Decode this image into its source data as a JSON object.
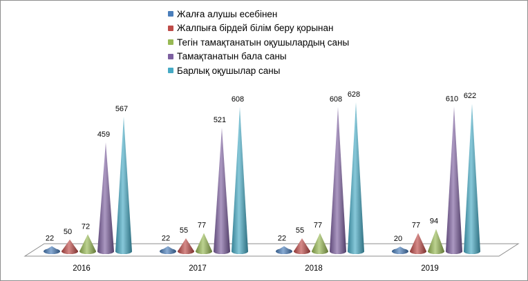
{
  "chart_data": {
    "type": "bar",
    "style": "3d-cone",
    "categories": [
      "2016",
      "2017",
      "2018",
      "2019"
    ],
    "series": [
      {
        "name": "Жалға алушы есебінен",
        "color": "#4a7ebb",
        "values": [
          22,
          22,
          22,
          20
        ]
      },
      {
        "name": "Жалпыға бірдей білім беру қорынан",
        "color": "#be4b48",
        "values": [
          50,
          55,
          55,
          77
        ]
      },
      {
        "name": "Тегін тамақтанатын оқушылардың саны",
        "color": "#98b954",
        "values": [
          72,
          77,
          77,
          94
        ]
      },
      {
        "name": "Тамақтанатын бала саны",
        "color": "#7d60a0",
        "values": [
          459,
          521,
          608,
          610
        ]
      },
      {
        "name": "Барлық оқушылар саны",
        "color": "#46aac5",
        "values": [
          567,
          608,
          628,
          622
        ]
      }
    ],
    "ylim": [
      0,
      640
    ],
    "grid": false,
    "legend_position": "top",
    "data_labels": true
  }
}
